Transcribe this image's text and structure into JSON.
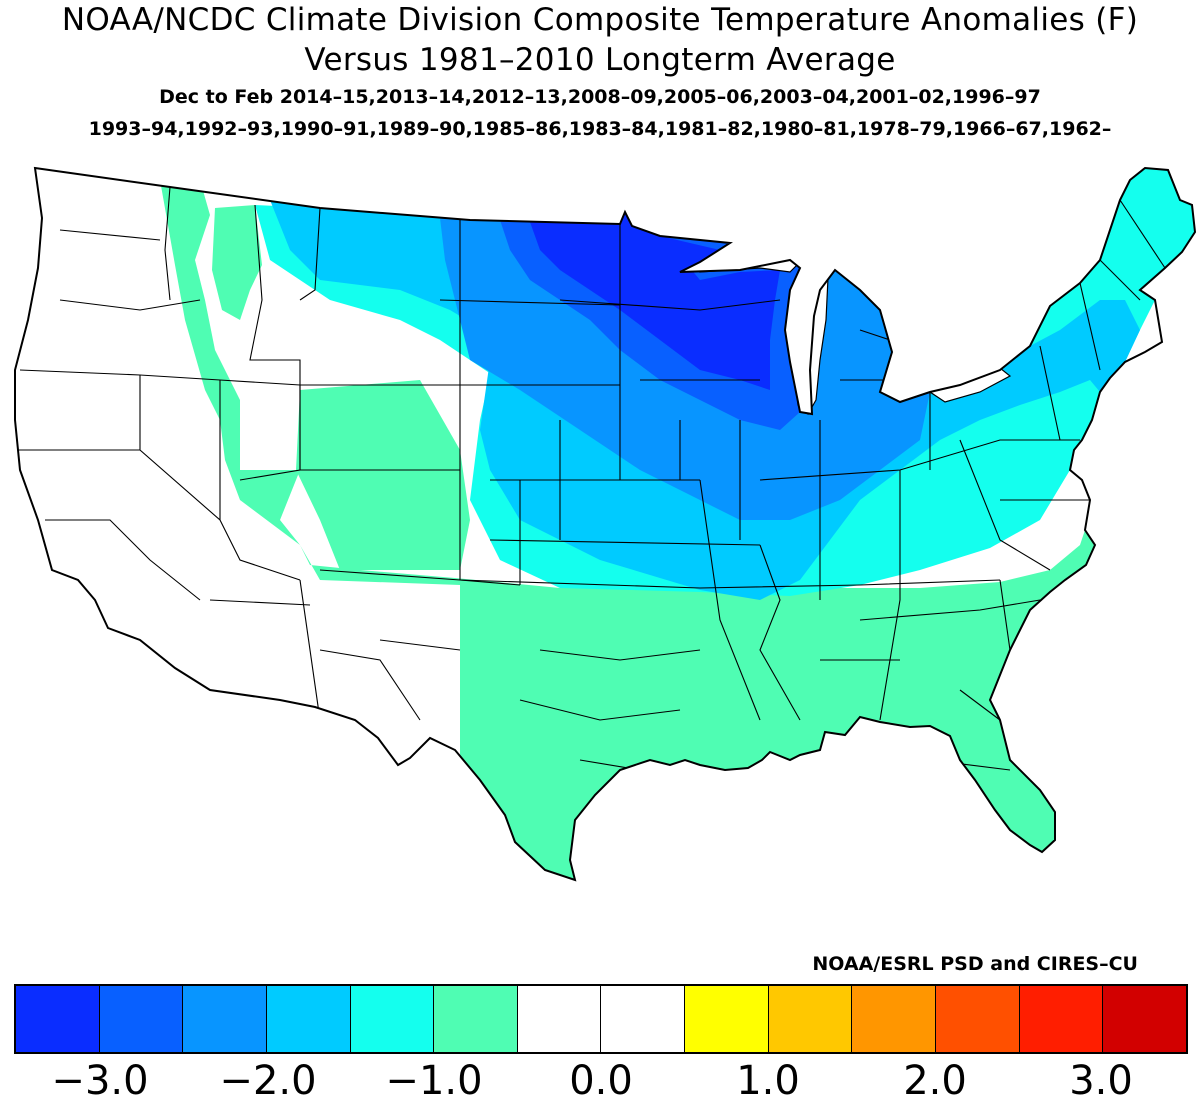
{
  "title": {
    "line1": "NOAA/NCDC Climate Division Composite Temperature Anomalies (F)",
    "line2": "Versus 1981–2010 Longterm Average"
  },
  "years": {
    "line1": "Dec to Feb  2014–15,2013–14,2012–13,2008–09,2005–06,2003–04,2001–02,1996–97",
    "line2": "1993–94,1992–93,1990–91,1989–90,1985–86,1983–84,1981–82,1980–81,1978–79,1966–67,1962–"
  },
  "credit": "NOAA/ESRL PSD and CIRES–CU",
  "legend": {
    "colors": [
      "#0a2dff",
      "#0860ff",
      "#0895ff",
      "#00cbff",
      "#14ffee",
      "#4ffdb3",
      "#ffffff",
      "#ffffff",
      "#ffff00",
      "#ffc800",
      "#ff9600",
      "#ff5000",
      "#ff1e00",
      "#d20000"
    ],
    "labels": [
      "−3.0",
      "−2.0",
      "−1.0",
      "0.0",
      "1.0",
      "2.0",
      "3.0"
    ]
  },
  "map_regions": [
    {
      "name": "pacific-northwest",
      "anomaly": "0 to -0.5",
      "color": "#ffffff"
    },
    {
      "name": "california-great-basin",
      "anomaly": "0 to -0.5",
      "color": "#ffffff"
    },
    {
      "name": "southwest",
      "anomaly": "0 to -0.5",
      "color": "#ffffff"
    },
    {
      "name": "southeast",
      "anomaly": "0 to -0.5",
      "color": "#ffffff"
    },
    {
      "name": "rockies-plains-south",
      "anomaly": "-0.5 to -1.0",
      "color": "#4ffdb3"
    },
    {
      "name": "montana-south-dakota",
      "anomaly": "-1.0 to -1.5",
      "color": "#14ffee"
    },
    {
      "name": "northern-plains-midwest",
      "anomaly": "-1.5 to -2.0",
      "color": "#00cbff"
    },
    {
      "name": "dakotas-iowa",
      "anomaly": "-2.0 to -2.5",
      "color": "#0895ff"
    },
    {
      "name": "minnesota-wisconsin",
      "anomaly": "-2.5 to -3.0",
      "color": "#0860ff"
    },
    {
      "name": "upper-midwest-core",
      "anomaly": "< -3.0",
      "color": "#0a2dff"
    },
    {
      "name": "northeast",
      "anomaly": "-1.0 to -1.5",
      "color": "#14ffee"
    }
  ]
}
